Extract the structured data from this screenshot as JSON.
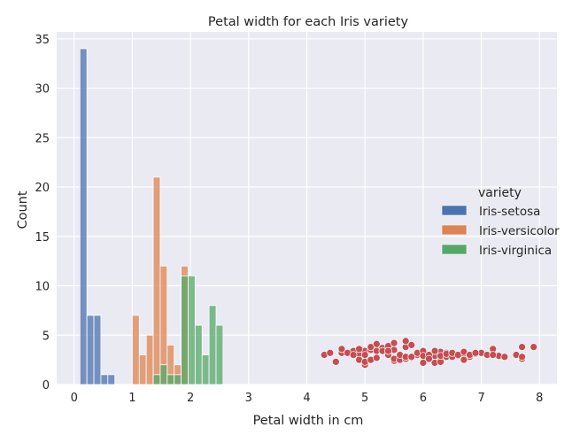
{
  "chart_data": {
    "type": "bar",
    "title": "Petal width for each Iris variety",
    "xlabel": "Petal width in cm",
    "ylabel": "Count",
    "xlim": [
      -0.3,
      8.3
    ],
    "ylim": [
      0,
      35.7
    ],
    "x_ticks": [
      "0",
      "1",
      "2",
      "3",
      "4",
      "5",
      "6",
      "7",
      "8"
    ],
    "y_ticks": [
      "0",
      "5",
      "10",
      "15",
      "20",
      "25",
      "30",
      "35"
    ],
    "grid": true,
    "bin_width": 0.12,
    "legend": {
      "title": "variety",
      "placement": "center-right",
      "entries": [
        {
          "label": "Iris-setosa",
          "color": "#4c72b0"
        },
        {
          "label": "Iris-versicolor",
          "color": "#dd8452"
        },
        {
          "label": "Iris-virginica",
          "color": "#55a868"
        }
      ]
    },
    "series": [
      {
        "name": "Iris-setosa",
        "color": "#4c72b0",
        "bin_starts": [
          0.1,
          0.22,
          0.34,
          0.46,
          0.58
        ],
        "values": [
          34,
          7,
          7,
          1,
          1
        ]
      },
      {
        "name": "Iris-versicolor",
        "color": "#dd8452",
        "bin_starts": [
          1.0,
          1.12,
          1.24,
          1.36,
          1.48,
          1.6,
          1.72,
          1.84
        ],
        "values": [
          7,
          3,
          5,
          21,
          12,
          4,
          2,
          12
        ]
      },
      {
        "name": "Iris-virginica",
        "color": "#55a868",
        "bin_starts": [
          1.36,
          1.48,
          1.6,
          1.72,
          1.84,
          1.96,
          2.08,
          2.2,
          2.32,
          2.44
        ],
        "values": [
          1,
          2,
          1,
          1,
          11,
          11,
          6,
          3,
          8,
          6
        ]
      }
    ],
    "scatter": {
      "color": "#c44e52",
      "points": [
        [
          4.3,
          3.0
        ],
        [
          4.4,
          3.2
        ],
        [
          4.5,
          2.3
        ],
        [
          4.6,
          3.2
        ],
        [
          4.7,
          3.2
        ],
        [
          4.8,
          3.4
        ],
        [
          4.9,
          3.1
        ],
        [
          5.0,
          3.4
        ],
        [
          5.1,
          3.5
        ],
        [
          5.2,
          3.4
        ],
        [
          5.3,
          3.7
        ],
        [
          5.4,
          3.9
        ],
        [
          5.5,
          3.5
        ],
        [
          5.6,
          2.9
        ],
        [
          5.7,
          3.8
        ],
        [
          5.8,
          2.7
        ],
        [
          5.9,
          3.0
        ],
        [
          6.0,
          2.2
        ],
        [
          6.1,
          2.8
        ],
        [
          6.2,
          2.9
        ],
        [
          6.3,
          3.3
        ],
        [
          6.4,
          3.2
        ],
        [
          6.5,
          3.0
        ],
        [
          6.6,
          2.9
        ],
        [
          6.7,
          3.1
        ],
        [
          6.8,
          2.8
        ],
        [
          6.9,
          3.1
        ],
        [
          7.0,
          3.2
        ],
        [
          7.1,
          3.0
        ],
        [
          7.2,
          3.6
        ],
        [
          7.3,
          2.9
        ],
        [
          7.4,
          2.8
        ],
        [
          7.6,
          3.0
        ],
        [
          7.7,
          3.8
        ],
        [
          7.9,
          3.8
        ],
        [
          4.6,
          3.6
        ],
        [
          4.7,
          3.2
        ],
        [
          4.8,
          3.0
        ],
        [
          4.9,
          2.5
        ],
        [
          4.9,
          3.6
        ],
        [
          5.0,
          2.0
        ],
        [
          5.0,
          2.3
        ],
        [
          5.0,
          3.0
        ],
        [
          5.1,
          2.5
        ],
        [
          5.1,
          3.8
        ],
        [
          5.2,
          2.7
        ],
        [
          5.2,
          4.1
        ],
        [
          5.3,
          3.4
        ],
        [
          5.4,
          3.0
        ],
        [
          5.4,
          3.4
        ],
        [
          5.5,
          2.4
        ],
        [
          5.5,
          2.6
        ],
        [
          5.5,
          4.2
        ],
        [
          5.6,
          2.5
        ],
        [
          5.6,
          3.0
        ],
        [
          5.7,
          2.6
        ],
        [
          5.7,
          4.4
        ],
        [
          5.7,
          2.8
        ],
        [
          5.8,
          4.0
        ],
        [
          5.8,
          2.8
        ],
        [
          5.9,
          3.2
        ],
        [
          6.0,
          3.4
        ],
        [
          6.0,
          2.9
        ],
        [
          6.1,
          3.0
        ],
        [
          6.1,
          2.6
        ],
        [
          6.2,
          2.2
        ],
        [
          6.2,
          3.4
        ],
        [
          6.3,
          2.5
        ],
        [
          6.3,
          2.3
        ],
        [
          6.3,
          2.9
        ],
        [
          6.4,
          2.8
        ],
        [
          6.4,
          3.1
        ],
        [
          6.5,
          2.8
        ],
        [
          6.5,
          3.2
        ],
        [
          6.6,
          3.0
        ],
        [
          6.7,
          2.5
        ],
        [
          6.7,
          3.3
        ],
        [
          6.8,
          3.0
        ],
        [
          6.9,
          3.2
        ],
        [
          7.2,
          3.0
        ],
        [
          7.7,
          2.6
        ],
        [
          7.7,
          2.8
        ]
      ]
    }
  }
}
